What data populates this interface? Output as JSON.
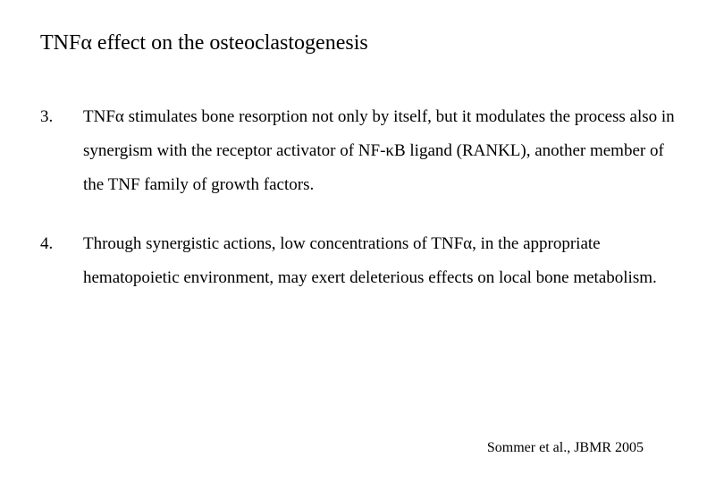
{
  "slide": {
    "title": "TNFα effect on the osteoclastogenesis",
    "items": [
      {
        "number": "3.",
        "text": "TNFα stimulates bone resorption not only by itself, but it modulates the process also in synergism with the receptor activator of NF-κB ligand (RANKL), another member of the TNF family of growth factors."
      },
      {
        "number": "4.",
        "text": "Through synergistic actions, low concentrations of TNFα, in the appropriate hematopoietic environment, may exert deleterious effects on local bone metabolism."
      }
    ],
    "citation": "Sommer et al., JBMR 2005"
  },
  "styling": {
    "font_family": "Lucida Handwriting, Brush Script MT, cursive",
    "title_fontsize": 24,
    "body_fontsize": 19,
    "citation_fontsize": 16,
    "text_color": "#000000",
    "background_color": "#ffffff",
    "line_height": 2.0
  }
}
